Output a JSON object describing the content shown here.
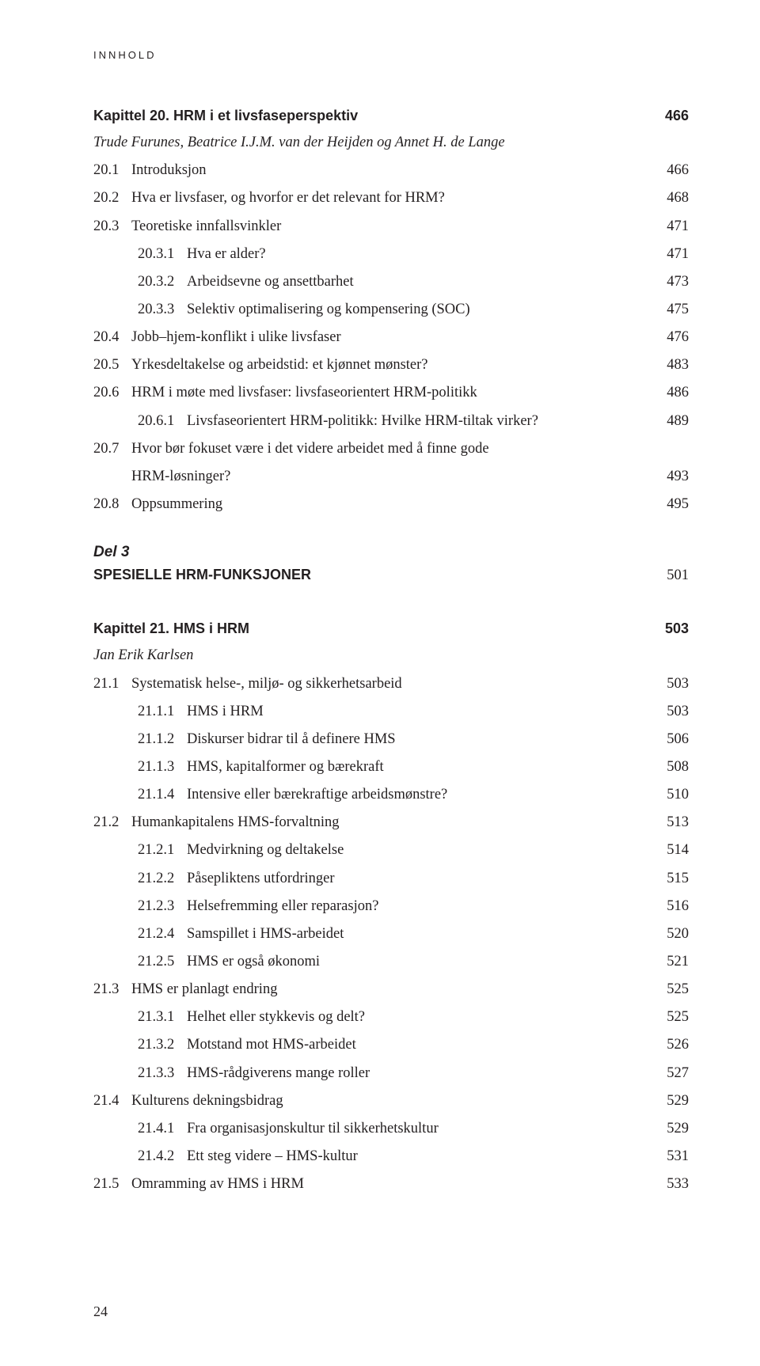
{
  "header": "INNHOLD",
  "pageNumber": "24",
  "block1": {
    "chapterTitle": "Kapittel 20. HRM i et livsfaseperspektiv",
    "chapterPage": "466",
    "author": "Trude Furunes, Beatrice I.J.M. van der Heijden og Annet H. de Lange",
    "rows": [
      {
        "n": "20.1",
        "t": "Introduksjon",
        "p": "466"
      },
      {
        "n": "20.2",
        "t": "Hva er livsfaser, og hvorfor er det relevant for HRM?",
        "p": "468"
      },
      {
        "n": "20.3",
        "t": "Teoretiske innfallsvinkler",
        "p": "471"
      },
      {
        "n": "20.3.1",
        "t": "Hva er alder?",
        "p": "471",
        "sub": true
      },
      {
        "n": "20.3.2",
        "t": "Arbeidsevne og ansettbarhet",
        "p": "473",
        "sub": true
      },
      {
        "n": "20.3.3",
        "t": "Selektiv optimalisering og kompensering (SOC)",
        "p": "475",
        "sub": true
      },
      {
        "n": "20.4",
        "t": "Jobb–hjem-konflikt i ulike livsfaser",
        "p": "476"
      },
      {
        "n": "20.5",
        "t": "Yrkesdeltakelse og arbeidstid: et kjønnet mønster?",
        "p": "483"
      },
      {
        "n": "20.6",
        "t": "HRM i møte med livsfaser: livsfaseorientert HRM-politikk",
        "p": "486"
      },
      {
        "n": "20.6.1",
        "t": "Livsfaseorientert HRM-politikk: Hvilke HRM-tiltak virker?",
        "p": "489",
        "sub": true
      },
      {
        "n": "20.7",
        "t": "Hvor bør fokuset være i det videre arbeidet med å finne gode",
        "p": ""
      },
      {
        "n": "",
        "t": "HRM-løsninger?",
        "p": "493",
        "hang": true
      },
      {
        "n": "20.8",
        "t": "Oppsummering",
        "p": "495"
      }
    ]
  },
  "part": {
    "label": "Del 3",
    "title": "SPESIELLE HRM-FUNKSJONER",
    "page": "501"
  },
  "block2": {
    "chapterTitle": "Kapittel 21. HMS i HRM",
    "chapterPage": "503",
    "author": "Jan Erik Karlsen",
    "rows": [
      {
        "n": "21.1",
        "t": "Systematisk helse-, miljø- og sikkerhetsarbeid",
        "p": "503"
      },
      {
        "n": "21.1.1",
        "t": "HMS i HRM",
        "p": "503",
        "sub": true
      },
      {
        "n": "21.1.2",
        "t": "Diskurser bidrar til å definere HMS",
        "p": "506",
        "sub": true
      },
      {
        "n": "21.1.3",
        "t": "HMS, kapitalformer og bærekraft",
        "p": "508",
        "sub": true
      },
      {
        "n": "21.1.4",
        "t": "Intensive eller bærekraftige arbeidsmønstre?",
        "p": "510",
        "sub": true
      },
      {
        "n": "21.2",
        "t": "Humankapitalens HMS-forvaltning",
        "p": "513"
      },
      {
        "n": "21.2.1",
        "t": "Medvirkning og deltakelse",
        "p": "514",
        "sub": true
      },
      {
        "n": "21.2.2",
        "t": "Påsepliktens utfordringer",
        "p": "515",
        "sub": true
      },
      {
        "n": "21.2.3",
        "t": "Helsefremming eller reparasjon?",
        "p": "516",
        "sub": true
      },
      {
        "n": "21.2.4",
        "t": "Samspillet i HMS-arbeidet",
        "p": "520",
        "sub": true
      },
      {
        "n": "21.2.5",
        "t": "HMS er også økonomi",
        "p": "521",
        "sub": true
      },
      {
        "n": "21.3",
        "t": "HMS er planlagt endring",
        "p": "525"
      },
      {
        "n": "21.3.1",
        "t": "Helhet eller stykkevis og delt?",
        "p": "525",
        "sub": true
      },
      {
        "n": "21.3.2",
        "t": "Motstand mot HMS-arbeidet",
        "p": "526",
        "sub": true
      },
      {
        "n": "21.3.3",
        "t": "HMS-rådgiverens mange roller",
        "p": "527",
        "sub": true
      },
      {
        "n": "21.4",
        "t": "Kulturens dekningsbidrag",
        "p": "529"
      },
      {
        "n": "21.4.1",
        "t": "Fra organisasjonskultur til sikkerhetskultur",
        "p": "529",
        "sub": true
      },
      {
        "n": "21.4.2",
        "t": "Ett steg videre – HMS-kultur",
        "p": "531",
        "sub": true
      },
      {
        "n": "21.5",
        "t": "Omramming av HMS i HRM",
        "p": "533"
      }
    ]
  }
}
